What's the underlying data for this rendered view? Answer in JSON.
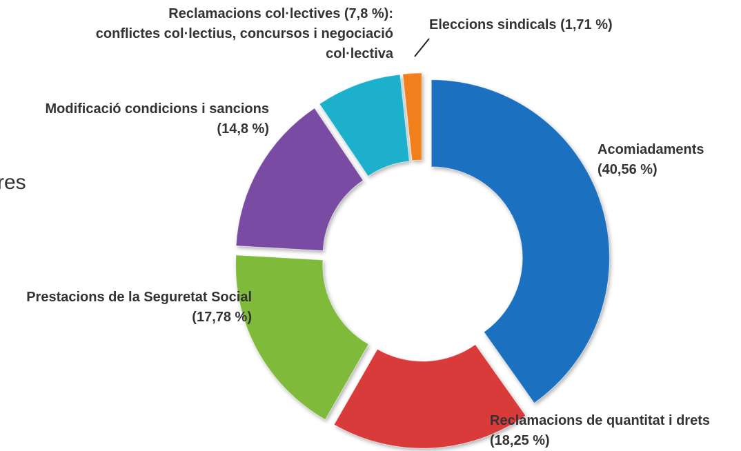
{
  "chart_data": {
    "type": "donut",
    "categories": [
      "Acomiadaments",
      "Reclamacions de quantitat i drets",
      "Prestacions de la Seguretat Social",
      "Modificació condicions i sancions",
      "Reclamacions col·lectives",
      "Eleccions sindicals"
    ],
    "values": [
      40.56,
      18.25,
      17.78,
      14.8,
      7.8,
      1.71
    ],
    "value_labels": [
      "(40,56 %)",
      "(18,25 %)",
      "(17,78 %)",
      "(14,8 %)",
      "(7,8 %):",
      "(1,71 %)"
    ],
    "colors": [
      "#1d6fc0",
      "#d93a3a",
      "#7fba3a",
      "#7a4ba3",
      "#1fb0cd",
      "#f07f1e"
    ],
    "annotations": [
      "conflictes col·lectius, concursos i negociació col·lectiva"
    ],
    "cropped_text": "res"
  }
}
